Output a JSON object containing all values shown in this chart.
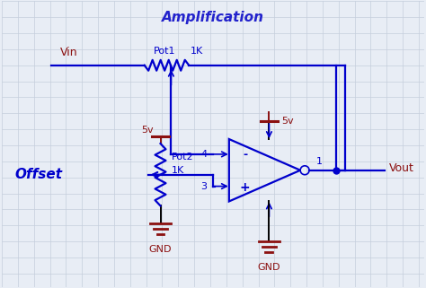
{
  "title": "Amplification",
  "title_color": "#2222CC",
  "title_fontsize": 11,
  "bg_color": "#E8EDF5",
  "wire_color": "#0000CC",
  "label_color": "#8B1010",
  "text_color": "#0000CC",
  "grid_color": "#C5CEDC",
  "dark_wire": "#000080",
  "offset_label": "Offset",
  "vin_label": "Vin",
  "vout_label": "Vout",
  "pot1_label": "Pot1",
  "pot2_label": "Pot2",
  "res_label": "1K",
  "v5_label": "5v",
  "gnd_label": "GND",
  "pin4_label": "4",
  "pin3_label": "3",
  "pin1_label": "1",
  "minus_label": "-",
  "plus_label": "+",
  "figsize": [
    4.74,
    3.21
  ],
  "dpi": 100
}
